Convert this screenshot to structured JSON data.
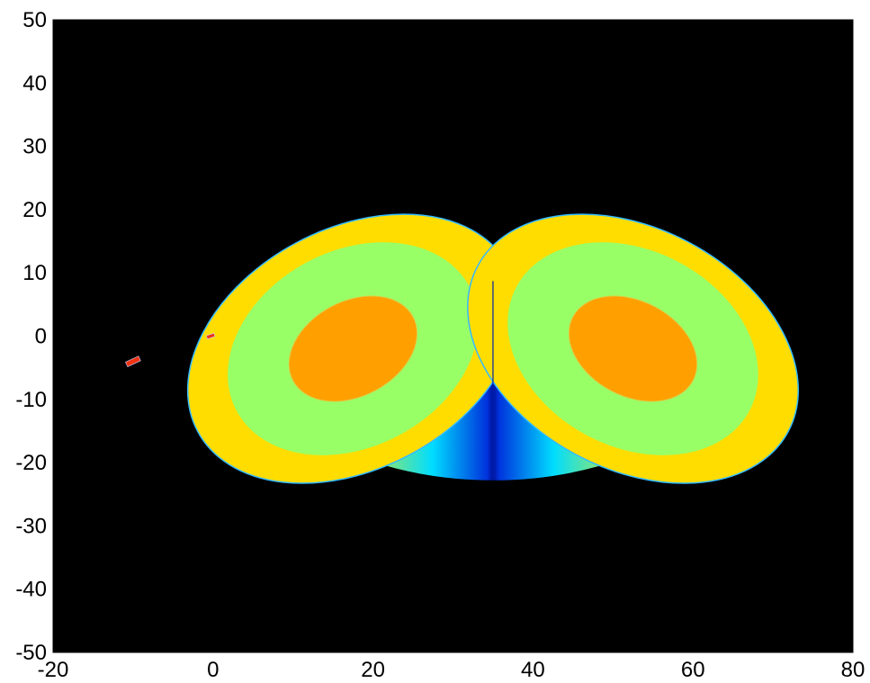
{
  "chart_data": {
    "type": "heatmap",
    "title": "",
    "xlabel": "",
    "ylabel": "",
    "xlim": [
      -20,
      80
    ],
    "ylim": [
      -50,
      50
    ],
    "x_ticks": [
      "-20",
      "0",
      "20",
      "40",
      "60",
      "80"
    ],
    "y_ticks": [
      "50",
      "40",
      "30",
      "20",
      "10",
      "0",
      "-10",
      "-20",
      "-30",
      "-40",
      "-50"
    ],
    "grid": false,
    "legend": "none",
    "colors": {
      "background": "#000000",
      "outer_ring": "#ffdd00",
      "middle_region": "#99ff66",
      "inner_core": "#ffa000",
      "saddle_light": "#00ccff",
      "saddle_dark": "#0022cc",
      "small_patch": "#ee3311"
    },
    "regions": {
      "left_lobe": {
        "center": [
          17.5,
          -2
        ],
        "outer_rx": 22,
        "outer_ry": 19,
        "middle_rx": 16.5,
        "middle_ry": 15.5,
        "inner_rx": 8.5,
        "inner_ry": 7.5,
        "angle": -28
      },
      "right_lobe": {
        "center": [
          52.5,
          -2
        ],
        "outer_rx": 22,
        "outer_ry": 19,
        "middle_rx": 16.5,
        "middle_ry": 15.5,
        "inner_rx": 8.5,
        "inner_ry": 7.5,
        "angle": 28
      },
      "saddle": {
        "x": 35,
        "top": 8.7,
        "bottom": -22.8
      },
      "small_patches": [
        {
          "x": -10,
          "y": -4,
          "w": 1.8,
          "h": 0.9,
          "angle": -25
        },
        {
          "x": -0.3,
          "y": 0,
          "w": 1.0,
          "h": 0.6,
          "angle": -20
        }
      ]
    }
  }
}
